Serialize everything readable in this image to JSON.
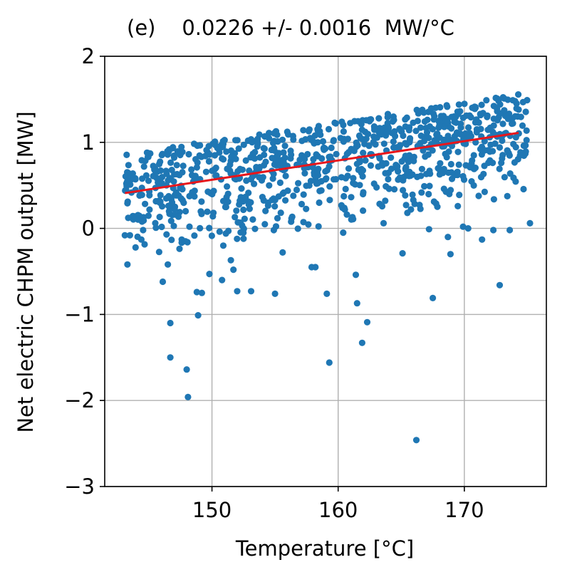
{
  "chart_data": {
    "type": "scatter",
    "title": "(e)    0.0226 +/- 0.0016  MW/°C",
    "xlabel": "Temperature [°C]",
    "ylabel": "Net electric CHPM output [MW]",
    "xlim": [
      141.5,
      176.5
    ],
    "ylim": [
      -3,
      2
    ],
    "xticks": [
      150,
      160,
      170
    ],
    "xtick_labels": [
      "150",
      "160",
      "170"
    ],
    "yticks": [
      -3,
      -2,
      -1,
      0,
      1,
      2
    ],
    "ytick_labels": [
      "−3",
      "−2",
      "−1",
      "0",
      "1",
      "2"
    ],
    "grid": true,
    "colors": {
      "points": "#1f77b4",
      "fit": "#e8161b",
      "grid": "#b0b0b0",
      "axes": "#000000"
    },
    "fit_line": {
      "x": [
        143.1,
        174.3
      ],
      "y": [
        0.41,
        1.11
      ]
    },
    "outliers": [
      {
        "x": 148.1,
        "y": -1.96
      },
      {
        "x": 148.0,
        "y": -1.64
      },
      {
        "x": 146.7,
        "y": -1.5
      },
      {
        "x": 146.7,
        "y": -1.1
      },
      {
        "x": 148.9,
        "y": -1.01
      },
      {
        "x": 159.3,
        "y": -1.56
      },
      {
        "x": 166.2,
        "y": -2.46
      },
      {
        "x": 161.9,
        "y": -1.33
      },
      {
        "x": 162.3,
        "y": -1.09
      },
      {
        "x": 161.5,
        "y": -0.87
      },
      {
        "x": 159.1,
        "y": -0.76
      },
      {
        "x": 155.0,
        "y": -0.76
      },
      {
        "x": 153.1,
        "y": -0.73
      },
      {
        "x": 152.0,
        "y": -0.73
      },
      {
        "x": 148.8,
        "y": -0.74
      },
      {
        "x": 149.2,
        "y": -0.75
      },
      {
        "x": 167.5,
        "y": -0.81
      },
      {
        "x": 172.8,
        "y": -0.66
      },
      {
        "x": 146.1,
        "y": -0.62
      },
      {
        "x": 150.8,
        "y": -0.6
      },
      {
        "x": 151.7,
        "y": -0.48
      },
      {
        "x": 149.8,
        "y": -0.53
      },
      {
        "x": 143.3,
        "y": -0.42
      },
      {
        "x": 146.5,
        "y": -0.42
      },
      {
        "x": 161.4,
        "y": -0.54
      },
      {
        "x": 157.9,
        "y": -0.45
      },
      {
        "x": 158.2,
        "y": -0.45
      },
      {
        "x": 151.5,
        "y": -0.37
      },
      {
        "x": 165.1,
        "y": -0.29
      },
      {
        "x": 168.9,
        "y": -0.3
      },
      {
        "x": 155.6,
        "y": -0.28
      },
      {
        "x": 150.9,
        "y": -0.2
      },
      {
        "x": 147.9,
        "y": -0.15
      },
      {
        "x": 147.6,
        "y": -0.13
      },
      {
        "x": 144.4,
        "y": -0.13
      },
      {
        "x": 146.4,
        "y": -0.07
      },
      {
        "x": 152.5,
        "y": -0.12
      },
      {
        "x": 168.7,
        "y": -0.1
      },
      {
        "x": 171.4,
        "y": -0.13
      },
      {
        "x": 167.2,
        "y": -0.01
      },
      {
        "x": 172.3,
        "y": -0.02
      },
      {
        "x": 173.6,
        "y": -0.02
      },
      {
        "x": 143.1,
        "y": -0.08
      },
      {
        "x": 143.5,
        "y": -0.08
      },
      {
        "x": 154.9,
        "y": -0.02
      },
      {
        "x": 160.4,
        "y": -0.05
      },
      {
        "x": 163.6,
        "y": 0.06
      },
      {
        "x": 175.2,
        "y": 0.06
      },
      {
        "x": 169.9,
        "y": 0.02
      },
      {
        "x": 170.3,
        "y": 0.0
      }
    ],
    "cluster": {
      "n": 900,
      "x_min": 143.1,
      "x_max": 175.0,
      "baseline_y": 0.41,
      "slope": 0.0226,
      "x0": 143.1,
      "upper_band_top": 0.45
    }
  }
}
